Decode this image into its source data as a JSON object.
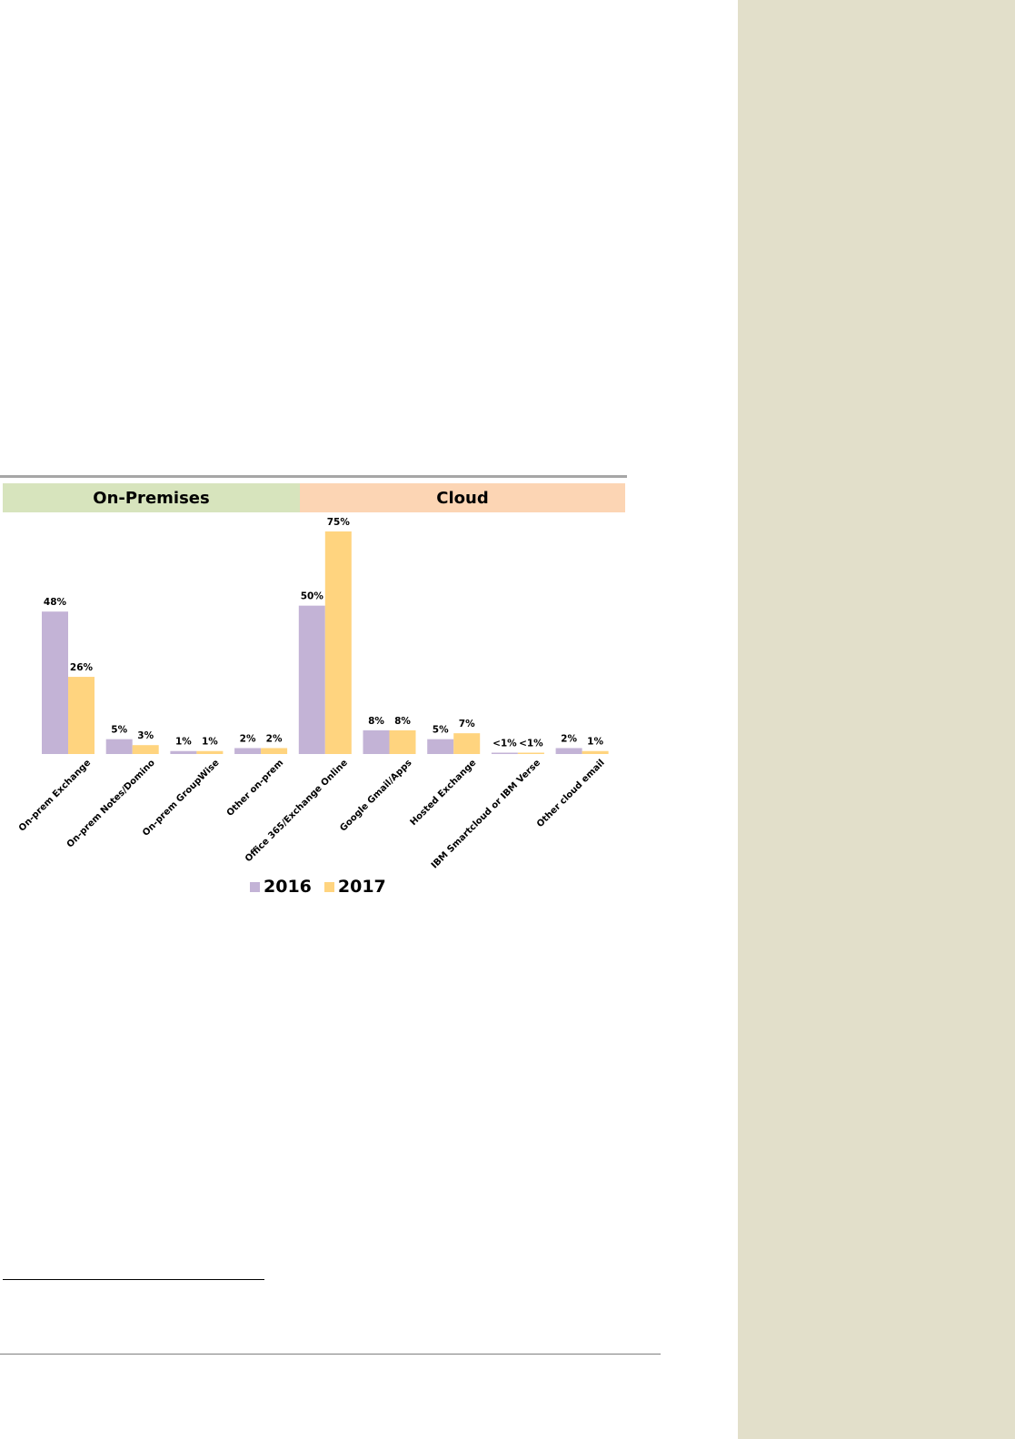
{
  "sections": [
    {
      "label": "On-Premises",
      "color": "#d7e4bd"
    },
    {
      "label": "Cloud",
      "color": "#fcd5b4"
    }
  ],
  "chart_data": {
    "type": "bar",
    "categories": [
      "On-prem Exchange",
      "On-prem Notes/Domino",
      "On-prem GroupWise",
      "Other on-prem",
      "Office 365/Exchange Online",
      "Google Gmail/Apps",
      "Hosted Exchange",
      "IBM Smartcloud or IBM Verse",
      "Other cloud email"
    ],
    "series": [
      {
        "name": "2016",
        "color": "#c3b3d6",
        "values": [
          48,
          5,
          1,
          2,
          50,
          8,
          5,
          0.3,
          2
        ],
        "labels": [
          "48%",
          "5%",
          "1%",
          "2%",
          "50%",
          "8%",
          "5%",
          "<1%",
          "2%"
        ]
      },
      {
        "name": "2017",
        "color": "#ffd47f",
        "values": [
          26,
          3,
          1,
          2,
          75,
          8,
          7,
          0.3,
          1
        ],
        "labels": [
          "26%",
          "3%",
          "1%",
          "2%",
          "75%",
          "8%",
          "7%",
          "<1%",
          "1%"
        ]
      }
    ],
    "ylim": [
      0,
      75
    ],
    "grid": false,
    "legend_position": "bottom"
  }
}
